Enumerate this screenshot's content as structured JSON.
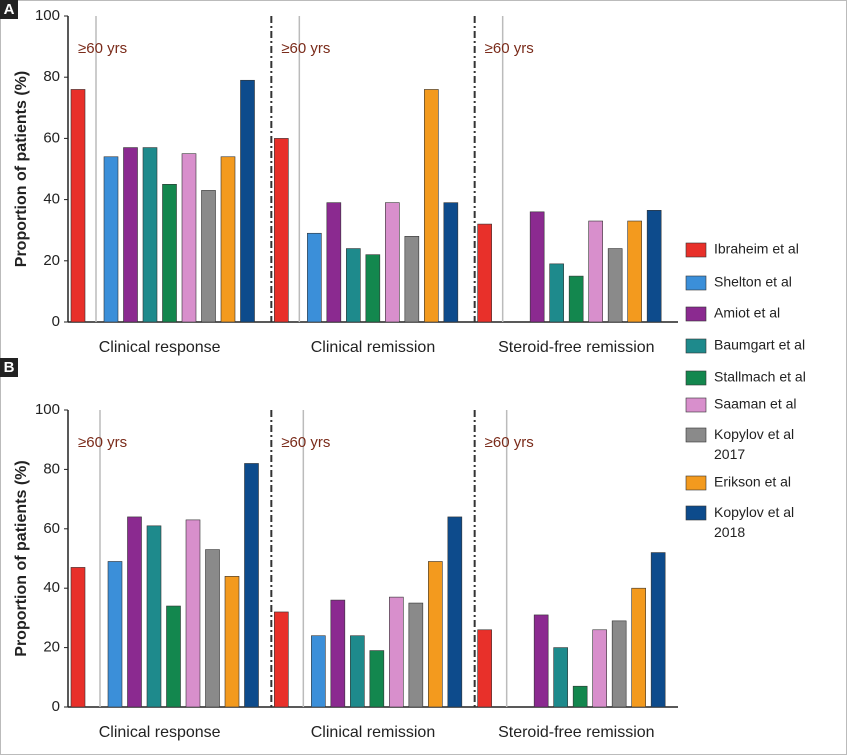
{
  "chart_data": [
    {
      "type": "bar",
      "panel": "A",
      "y_label": "Proportion of patients (%)",
      "annotation": "≥60 yrs",
      "categories": [
        "Clinical response",
        "Clinical remission",
        "Steroid-free remission"
      ],
      "ylim": [
        0,
        100
      ],
      "yticks": [
        0,
        20,
        40,
        60,
        80,
        100
      ],
      "series": [
        {
          "name": "Ibraheim et al",
          "color": "#e8302a",
          "values": [
            76,
            60,
            32
          ]
        },
        {
          "name": "Shelton et al",
          "color": "#3b8fd9",
          "values": [
            54,
            29,
            null
          ]
        },
        {
          "name": "Amiot et al",
          "color": "#8b2a90",
          "values": [
            57,
            39,
            36
          ]
        },
        {
          "name": "Baumgart et al",
          "color": "#1e8a8c",
          "values": [
            57,
            24,
            19
          ]
        },
        {
          "name": "Stallmach et al",
          "color": "#13874e",
          "values": [
            45,
            22,
            15
          ]
        },
        {
          "name": "Saaman et al",
          "color": "#d88fcc",
          "values": [
            55,
            39,
            33
          ]
        },
        {
          "name": "Kopylov et al 2017",
          "color": "#8a8a8a",
          "values": [
            43,
            28,
            24
          ]
        },
        {
          "name": "Erikson et al",
          "color": "#f39a1e",
          "values": [
            54,
            76,
            33
          ]
        },
        {
          "name": "Kopylov et al 2018",
          "color": "#0d4b8c",
          "values": [
            79,
            39,
            36.5
          ]
        }
      ]
    },
    {
      "type": "bar",
      "panel": "B",
      "y_label": "Proportion of patients (%)",
      "annotation": "≥60 yrs",
      "categories": [
        "Clinical response",
        "Clinical remission",
        "Steroid-free remission"
      ],
      "ylim": [
        0,
        100
      ],
      "yticks": [
        0,
        20,
        40,
        60,
        80,
        100
      ],
      "series": [
        {
          "values": [
            47,
            32,
            26
          ]
        },
        {
          "values": [
            49,
            24,
            null
          ]
        },
        {
          "values": [
            64,
            36,
            31
          ]
        },
        {
          "values": [
            61,
            24,
            20
          ]
        },
        {
          "values": [
            34,
            19,
            7
          ]
        },
        {
          "values": [
            63,
            37,
            26
          ]
        },
        {
          "values": [
            53,
            35,
            29
          ]
        },
        {
          "values": [
            44,
            49,
            40
          ]
        },
        {
          "values": [
            82,
            64,
            52
          ]
        }
      ]
    }
  ]
}
